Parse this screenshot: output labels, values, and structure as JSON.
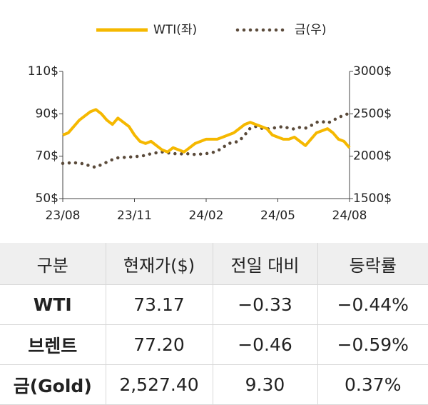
{
  "chart_data": {
    "type": "line",
    "categories": [
      "23/08",
      null,
      null,
      null,
      null,
      null,
      null,
      null,
      null,
      null,
      null,
      null,
      null,
      "23/11",
      null,
      null,
      null,
      null,
      null,
      null,
      null,
      null,
      null,
      null,
      null,
      null,
      "24/02",
      null,
      null,
      null,
      null,
      null,
      null,
      null,
      null,
      null,
      null,
      null,
      null,
      "24/05",
      null,
      null,
      null,
      null,
      null,
      null,
      null,
      null,
      null,
      null,
      null,
      null,
      "24/08"
    ],
    "series": [
      {
        "name": "WTI(좌)",
        "color": "#f5b800",
        "dash": "solid",
        "values": [
          80,
          81,
          84,
          87,
          89,
          91,
          92,
          90,
          87,
          85,
          88,
          86,
          84,
          80,
          77,
          76,
          77,
          75,
          73,
          72,
          74,
          73,
          72,
          74,
          76,
          77,
          78,
          78,
          78,
          79,
          80,
          81,
          83,
          85,
          86,
          85,
          84,
          83,
          80,
          79,
          78,
          78,
          79,
          77,
          75,
          78,
          81,
          82,
          83,
          81,
          78,
          77,
          74
        ]
      },
      {
        "name": "금(우)",
        "color": "#5a4a3a",
        "dash": "dotted",
        "axis": "y2",
        "values": [
          1915,
          1920,
          1925,
          1915,
          1910,
          1880,
          1870,
          1900,
          1930,
          1960,
          1980,
          1985,
          1990,
          1995,
          2000,
          2010,
          2030,
          2040,
          2050,
          2040,
          2030,
          2030,
          2025,
          2030,
          2020,
          2025,
          2030,
          2040,
          2060,
          2100,
          2150,
          2160,
          2180,
          2250,
          2330,
          2350,
          2330,
          2320,
          2330,
          2340,
          2350,
          2330,
          2320,
          2340,
          2330,
          2360,
          2400,
          2410,
          2390,
          2420,
          2460,
          2480,
          2510
        ]
      }
    ],
    "ylim": [
      50,
      110
    ],
    "yticks": [
      {
        "value": 50,
        "label": "50$"
      },
      {
        "value": 70,
        "label": "70$"
      },
      {
        "value": 90,
        "label": "90$"
      },
      {
        "value": 110,
        "label": "110$"
      }
    ],
    "y2lim": [
      1500,
      3000
    ],
    "y2ticks": [
      {
        "value": 1500,
        "label": "1500$"
      },
      {
        "value": 2000,
        "label": "2000$"
      },
      {
        "value": 2500,
        "label": "2500$"
      },
      {
        "value": 3000,
        "label": "3000$"
      }
    ],
    "legend": "top"
  },
  "table": {
    "header": [
      "구분",
      "현재가($)",
      "전일 대비",
      "등락률"
    ],
    "rows": [
      [
        "WTI",
        "73.17",
        "−0.33",
        "−0.44%"
      ],
      [
        "브렌트",
        "77.20",
        "−0.46",
        "−0.59%"
      ],
      [
        "금(Gold)",
        "2,527.40",
        "9.30",
        "0.37%"
      ]
    ]
  }
}
